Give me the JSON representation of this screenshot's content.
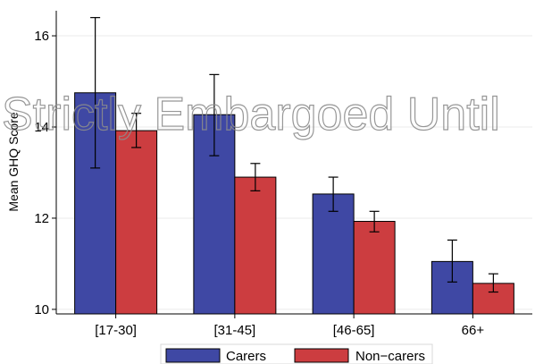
{
  "chart_data": {
    "type": "bar",
    "ylabel": "Mean GHQ Score",
    "categories": [
      "[17-30]",
      "[31-45]",
      "[46-65]",
      "66+"
    ],
    "ylim": [
      9.9,
      16.55
    ],
    "yticks": [
      10,
      12,
      14,
      16
    ],
    "grid": true,
    "legend_position": "bottom",
    "series": [
      {
        "name": "Carers",
        "color": "#3f48a4",
        "values": [
          14.75,
          14.27,
          12.53,
          11.05
        ],
        "ci_low": [
          13.1,
          13.37,
          12.15,
          10.6
        ],
        "ci_high": [
          16.4,
          15.15,
          12.9,
          11.52
        ]
      },
      {
        "name": "Non−carers",
        "color": "#cc3d40",
        "values": [
          13.92,
          12.9,
          11.93,
          10.57
        ],
        "ci_low": [
          13.55,
          12.6,
          11.7,
          10.38
        ],
        "ci_high": [
          14.3,
          13.2,
          12.15,
          10.78
        ]
      }
    ]
  },
  "watermark": "Strictly Embargoed Until"
}
